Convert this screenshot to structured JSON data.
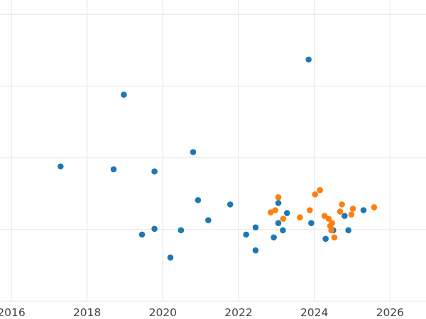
{
  "colors": {
    "blue": "#1f77b4",
    "orange": "#ff7f0e",
    "grid": "#e9e9e9",
    "tick_text": "#444444",
    "background": "#ffffff"
  },
  "chart_data": {
    "type": "scatter",
    "title": "",
    "xlabel": "",
    "ylabel": "",
    "grid": true,
    "legend": "none",
    "x_ticks": [
      "2016",
      "2018",
      "2020",
      "2022",
      "2024",
      "2026"
    ],
    "y_ticks": [],
    "xlim": [
      2015.7,
      2026.95
    ],
    "ylim": [
      0,
      21
    ],
    "series": [
      {
        "color": "#1f77b4",
        "points": [
          {
            "x": 2017.3,
            "y": 9.4
          },
          {
            "x": 2018.7,
            "y": 9.2
          },
          {
            "x": 2018.97,
            "y": 14.4
          },
          {
            "x": 2019.45,
            "y": 4.65
          },
          {
            "x": 2019.78,
            "y": 9.05
          },
          {
            "x": 2019.78,
            "y": 5.05
          },
          {
            "x": 2020.2,
            "y": 3.05
          },
          {
            "x": 2020.48,
            "y": 4.95
          },
          {
            "x": 2020.8,
            "y": 10.4
          },
          {
            "x": 2020.93,
            "y": 7.05
          },
          {
            "x": 2021.2,
            "y": 5.65
          },
          {
            "x": 2021.78,
            "y": 6.75
          },
          {
            "x": 2022.2,
            "y": 4.65
          },
          {
            "x": 2022.45,
            "y": 5.15
          },
          {
            "x": 2022.45,
            "y": 3.55
          },
          {
            "x": 2022.93,
            "y": 4.45
          },
          {
            "x": 2023.05,
            "y": 6.85
          },
          {
            "x": 2023.05,
            "y": 5.45
          },
          {
            "x": 2023.17,
            "y": 4.95
          },
          {
            "x": 2023.28,
            "y": 6.15
          },
          {
            "x": 2023.85,
            "y": 16.85
          },
          {
            "x": 2023.92,
            "y": 5.45
          },
          {
            "x": 2024.3,
            "y": 4.35
          },
          {
            "x": 2024.5,
            "y": 4.95
          },
          {
            "x": 2024.8,
            "y": 5.95
          },
          {
            "x": 2024.9,
            "y": 4.95
          },
          {
            "x": 2025.3,
            "y": 6.35
          }
        ]
      },
      {
        "color": "#ff7f0e",
        "points": [
          {
            "x": 2022.85,
            "y": 6.2
          },
          {
            "x": 2022.97,
            "y": 6.35
          },
          {
            "x": 2023.05,
            "y": 7.25
          },
          {
            "x": 2023.18,
            "y": 5.75
          },
          {
            "x": 2023.62,
            "y": 5.85
          },
          {
            "x": 2023.88,
            "y": 6.35
          },
          {
            "x": 2024.02,
            "y": 7.45
          },
          {
            "x": 2024.15,
            "y": 7.75
          },
          {
            "x": 2024.27,
            "y": 5.95
          },
          {
            "x": 2024.38,
            "y": 5.75
          },
          {
            "x": 2024.42,
            "y": 5.25
          },
          {
            "x": 2024.47,
            "y": 5.45
          },
          {
            "x": 2024.45,
            "y": 4.95
          },
          {
            "x": 2024.53,
            "y": 4.45
          },
          {
            "x": 2024.68,
            "y": 6.25
          },
          {
            "x": 2024.73,
            "y": 6.75
          },
          {
            "x": 2024.98,
            "y": 6.05
          },
          {
            "x": 2025.02,
            "y": 6.45
          },
          {
            "x": 2025.58,
            "y": 6.55
          }
        ]
      }
    ]
  }
}
